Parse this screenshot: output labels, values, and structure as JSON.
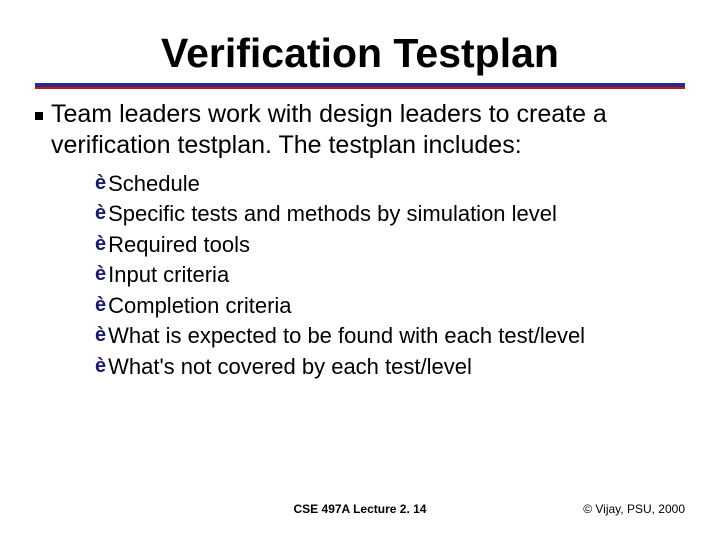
{
  "slide": {
    "title": "Verification Testplan",
    "rule_colors": {
      "top": "#2a2a8a",
      "bottom": "#c01818"
    },
    "lead": "Team leaders work with design leaders to create a verification testplan.  The testplan includes:",
    "items": [
      "Schedule",
      "Specific tests and methods by simulation level",
      "Required tools",
      "Input criteria",
      "Completion criteria",
      "What is expected to be found with each test/level",
      "What's not covered by each test/level"
    ],
    "arrow_glyph": "è",
    "arrow_color": "#1a1a70"
  },
  "footer": {
    "center": "CSE 497A Lecture 2. 14",
    "right": "© Vijay, PSU, 2000"
  },
  "typography": {
    "title_fontsize": 41,
    "lead_fontsize": 25,
    "item_fontsize": 22,
    "footer_fontsize": 12,
    "font_family": "Arial"
  },
  "colors": {
    "text": "#000000",
    "background": "#ffffff"
  }
}
